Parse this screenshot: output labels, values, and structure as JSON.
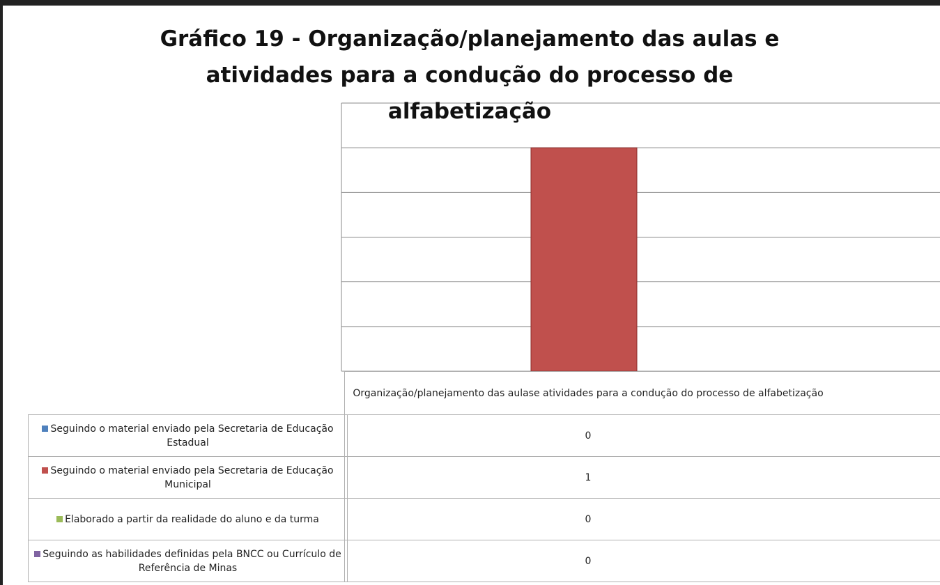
{
  "chart_data": {
    "type": "bar",
    "title": "Gráfico 19 - Organização/planejamento das aulas e atividades para a condução do processo de alfabetização",
    "categories": [
      "Organização/planejamento das aulase atividades para a condução do processo de alfabetização"
    ],
    "series": [
      {
        "name": "Seguindo o material enviado pela Secretaria de Educação Estadual",
        "color": "#4f81bd",
        "values": [
          0
        ]
      },
      {
        "name": "Seguindo o material enviado pela Secretaria de Educação Municipal",
        "color": "#c0504d",
        "values": [
          1
        ]
      },
      {
        "name": "Elaborado a partir da realidade do aluno e da turma",
        "color": "#9bbb59",
        "values": [
          0
        ]
      },
      {
        "name": "Seguindo as habilidades definidas pela BNCC ou Currículo de Referência de Minas",
        "color": "#8064a2",
        "values": [
          0
        ]
      }
    ],
    "ylim": [
      0,
      1.2
    ],
    "yticks": [
      0,
      0.2,
      0.4,
      0.6,
      0.8,
      1,
      1.2
    ],
    "grid": true,
    "data_table": true
  }
}
